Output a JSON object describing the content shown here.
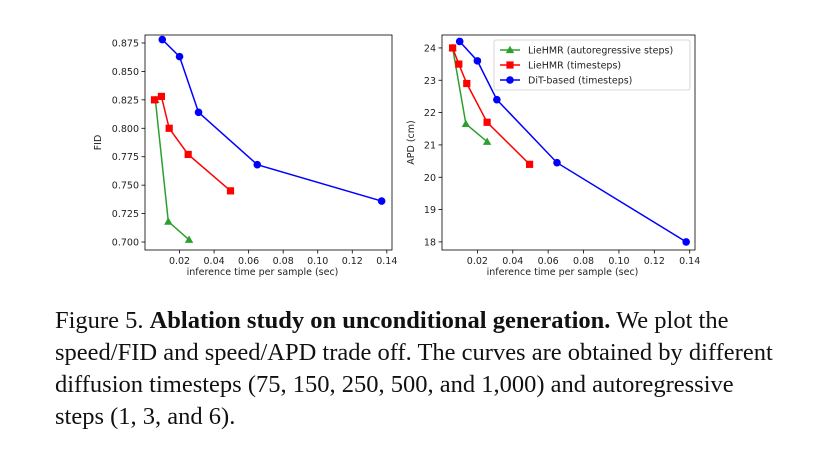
{
  "chart_data": [
    {
      "type": "line",
      "title": "",
      "xlabel": "inference time per sample (sec)",
      "ylabel": "FID",
      "xlim": [
        0.0,
        0.143
      ],
      "ylim": [
        0.693,
        0.882
      ],
      "xticks": [
        0.02,
        0.04,
        0.06,
        0.08,
        0.1,
        0.12,
        0.14
      ],
      "xtick_labels": [
        "0.02",
        "0.04",
        "0.06",
        "0.08",
        "0.10",
        "0.12",
        "0.14"
      ],
      "yticks": [
        0.7,
        0.725,
        0.75,
        0.775,
        0.8,
        0.825,
        0.85,
        0.875
      ],
      "ytick_labels": [
        "0.700",
        "0.725",
        "0.750",
        "0.775",
        "0.800",
        "0.825",
        "0.850",
        "0.875"
      ],
      "grid": false,
      "legend": "none",
      "series": [
        {
          "name": "LieHMR (autoregressive steps)",
          "color": "#2ca02c",
          "marker": "triangle",
          "x": [
            0.006,
            0.0135,
            0.0255
          ],
          "y": [
            0.825,
            0.718,
            0.702
          ]
        },
        {
          "name": "LieHMR (timesteps)",
          "color": "#ff0000",
          "marker": "square",
          "x": [
            0.0055,
            0.0095,
            0.014,
            0.025,
            0.0495
          ],
          "y": [
            0.825,
            0.828,
            0.8,
            0.777,
            0.745
          ]
        },
        {
          "name": "DiT-based (timesteps)",
          "color": "#0000ff",
          "marker": "circle",
          "x": [
            0.01,
            0.02,
            0.031,
            0.065,
            0.137
          ],
          "y": [
            0.878,
            0.863,
            0.814,
            0.768,
            0.736
          ]
        }
      ]
    },
    {
      "type": "line",
      "title": "",
      "xlabel": "inference time per sample (sec)",
      "ylabel": "APD (cm)",
      "xlim": [
        0.0,
        0.143
      ],
      "ylim": [
        17.75,
        24.4
      ],
      "xticks": [
        0.02,
        0.04,
        0.06,
        0.08,
        0.1,
        0.12,
        0.14
      ],
      "xtick_labels": [
        "0.02",
        "0.04",
        "0.06",
        "0.08",
        "0.10",
        "0.12",
        "0.14"
      ],
      "yticks": [
        18,
        19,
        20,
        21,
        22,
        23,
        24
      ],
      "ytick_labels": [
        "18",
        "19",
        "20",
        "21",
        "22",
        "23",
        "24"
      ],
      "grid": false,
      "legend": "top-right",
      "series": [
        {
          "name": "LieHMR (autoregressive steps)",
          "color": "#2ca02c",
          "marker": "triangle",
          "x": [
            0.006,
            0.0135,
            0.0255
          ],
          "y": [
            24.0,
            21.65,
            21.1
          ]
        },
        {
          "name": "LieHMR (timesteps)",
          "color": "#ff0000",
          "marker": "square",
          "x": [
            0.006,
            0.0095,
            0.014,
            0.0255,
            0.0495
          ],
          "y": [
            24.0,
            23.5,
            22.9,
            21.7,
            20.4
          ]
        },
        {
          "name": "DiT-based (timesteps)",
          "color": "#0000ff",
          "marker": "circle",
          "x": [
            0.01,
            0.02,
            0.031,
            0.065,
            0.138
          ],
          "y": [
            24.2,
            23.6,
            22.4,
            20.45,
            18.0
          ]
        }
      ]
    }
  ],
  "caption": {
    "label": "Figure 5.",
    "title": "Ablation study on unconditional generation.",
    "body": "We plot the speed/FID and speed/APD trade off. The curves are obtained by different diffusion timesteps (75, 150, 250, 500, and 1,000) and autoregressive steps (1, 3, and 6)."
  }
}
